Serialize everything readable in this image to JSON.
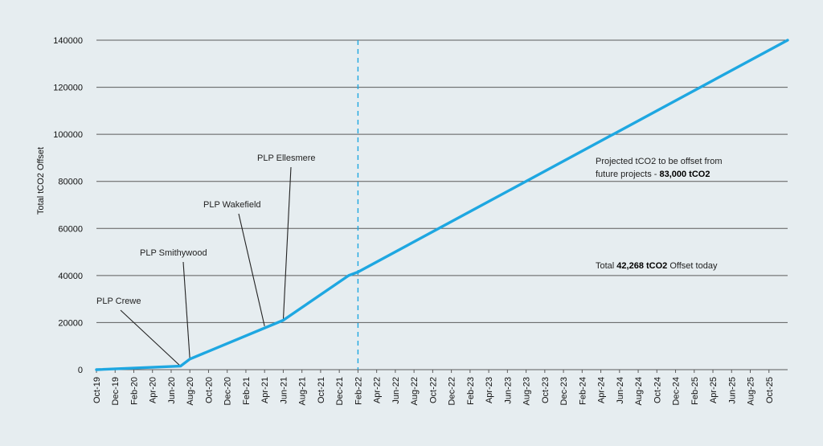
{
  "chart_data": {
    "type": "line",
    "ylabel": "Total tCO2 Offset",
    "ylim": [
      0,
      140000
    ],
    "yticks": [
      0,
      20000,
      40000,
      60000,
      80000,
      100000,
      120000,
      140000
    ],
    "x_tick_labels": [
      "Oct-19",
      "Dec-19",
      "Feb-20",
      "Apr-20",
      "Jun-20",
      "Aug-20",
      "Oct-20",
      "Dec-20",
      "Feb-21",
      "Apr-21",
      "Jun-21",
      "Aug-21",
      "Oct-21",
      "Dec-21",
      "Feb-22",
      "Apr-22",
      "Jun-22",
      "Aug-22",
      "Oct-22",
      "Dec-22",
      "Feb-23",
      "Apr-23",
      "Jun-23",
      "Aug-23",
      "Oct-23",
      "Dec-23",
      "Feb-24",
      "Apr-24",
      "Jun-24",
      "Aug-24",
      "Oct-24",
      "Dec-24",
      "Feb-25",
      "Apr-25",
      "Jun-25",
      "Aug-25",
      "Oct-25"
    ],
    "series": [
      {
        "points": [
          {
            "x": "Oct-19",
            "y": 0
          },
          {
            "x": "Jul-20",
            "y": 1500
          },
          {
            "x": "Aug-20",
            "y": 4500
          },
          {
            "x": "Jun-21",
            "y": 21000
          },
          {
            "x": "Jan-22",
            "y": 40000
          },
          {
            "x": "Feb-22",
            "y": 41500
          },
          {
            "x": "Dec-25",
            "y": 140000
          }
        ]
      }
    ],
    "reference_line": {
      "x": "Feb-22",
      "style": "dashed"
    },
    "grid": true,
    "line_color": "#1ea7e1",
    "grid_color": "#5b5b5b",
    "annotations": [
      {
        "label": "PLP Crewe",
        "target": {
          "x": "Jul-20",
          "y": 1500
        }
      },
      {
        "label": "PLP Smithywood",
        "target": {
          "x": "Aug-20",
          "y": 4500
        }
      },
      {
        "label": "PLP Wakefield",
        "target": {
          "x": "Apr-21",
          "y": 18500
        }
      },
      {
        "label": "PLP Ellesmere",
        "target": {
          "x": "Jun-21",
          "y": 21000
        }
      }
    ],
    "notes": [
      {
        "text_parts": [
          {
            "t": "Projected tCO2 to be offset from",
            "bold": false
          }
        ]
      },
      {
        "text_parts": [
          {
            "t": "future projects - ",
            "bold": false
          },
          {
            "t": "83,000 tCO2",
            "bold": true
          }
        ]
      },
      {
        "text_parts": [
          {
            "t": "Total ",
            "bold": false
          },
          {
            "t": "42,268 tCO2",
            "bold": true
          },
          {
            "t": " Offset today",
            "bold": false
          }
        ]
      }
    ]
  }
}
